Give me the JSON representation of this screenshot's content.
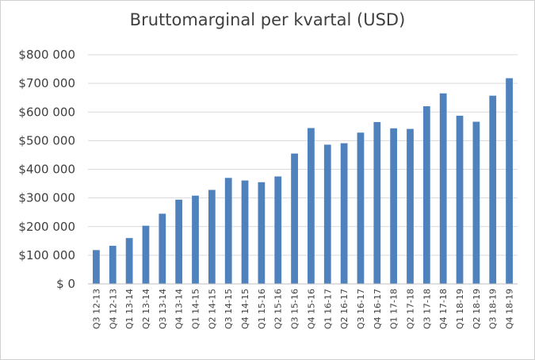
{
  "chart_data": {
    "type": "bar",
    "title": "Bruttomarginal per kvartal (USD)",
    "xlabel": "",
    "ylabel": "",
    "ylim": [
      0,
      800000
    ],
    "grid": true,
    "y_tick_labels": [
      "$ 0",
      "$100 000",
      "$200 000",
      "$300 000",
      "$400 000",
      "$500 000",
      "$600 000",
      "$700 000",
      "$800 000"
    ],
    "categories": [
      "Q3 12-13",
      "Q4 12-13",
      "Q1 13-14",
      "Q2 13-14",
      "Q3 13-14",
      "Q4 13-14",
      "Q1 14-15",
      "Q2 14-15",
      "Q3 14-15",
      "Q4 14-15",
      "Q1 15-16",
      "Q2 15-16",
      "Q3 15-16",
      "Q4 15-16",
      "Q1 16-17",
      "Q2 16-17",
      "Q3 16-17",
      "Q4 16-17",
      "Q1 17-18",
      "Q2 17-18",
      "Q3 17-18",
      "Q4 17-18",
      "Q1 18-19",
      "Q2 18-19",
      "Q3 18-19",
      "Q4 18-19"
    ],
    "values": [
      118000,
      133000,
      160000,
      203000,
      245000,
      294000,
      308000,
      328000,
      370000,
      361000,
      355000,
      375000,
      455000,
      544000,
      486000,
      491000,
      528000,
      565000,
      543000,
      541000,
      620000,
      665000,
      587000,
      566000,
      657000,
      718000
    ],
    "colors": {
      "bar": "#4F81BD",
      "grid": "#D9D9D9",
      "axis": "#BFBFBF"
    }
  }
}
